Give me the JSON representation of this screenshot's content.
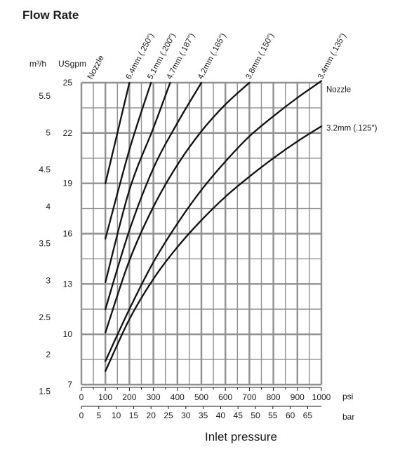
{
  "title": "Flow Rate",
  "axes": {
    "left_m3h_label": "m³/h",
    "left_usgpm_label": "USgpm",
    "nozzle_header": "Nozzle",
    "psi_unit": "psi",
    "bar_unit": "bar",
    "xlabel": "Inlet pressure"
  },
  "chart_data": {
    "type": "line",
    "title": "Flow Rate",
    "xlabel": "Inlet pressure",
    "ylabel": "USgpm",
    "x_unit": "psi",
    "xlim": [
      0,
      1000
    ],
    "ylim": [
      7,
      25
    ],
    "grid": true,
    "psi_ticks": [
      "0",
      "100",
      "200",
      "300",
      "400",
      "500",
      "600",
      "700",
      "800",
      "900",
      "1000"
    ],
    "bar_ticks": [
      "0",
      "5",
      "10",
      "15",
      "20",
      "25",
      "30",
      "35",
      "40",
      "45",
      "50",
      "55",
      "60",
      "65"
    ],
    "usgpm_ticks": [
      "25",
      "22",
      "19",
      "16",
      "13",
      "10",
      "7"
    ],
    "m3h_ticks": [
      "5.5",
      "5",
      "4.5",
      "4",
      "3.5",
      "3",
      "2.5",
      "2",
      "1.5"
    ],
    "series": [
      {
        "name": "6.4mm (.250\")",
        "x": [
          100,
          200
        ],
        "y": [
          19.0,
          25.0
        ]
      },
      {
        "name": "5.1mm (.200\")",
        "x": [
          100,
          200,
          290
        ],
        "y": [
          15.7,
          21.0,
          25.0
        ]
      },
      {
        "name": "4.7mm (.187\")",
        "x": [
          100,
          200,
          300,
          370
        ],
        "y": [
          13.1,
          18.6,
          22.3,
          25.0
        ]
      },
      {
        "name": "4.2mm (.165\")",
        "x": [
          100,
          200,
          300,
          400,
          500
        ],
        "y": [
          11.5,
          16.2,
          19.9,
          22.6,
          25.0
        ]
      },
      {
        "name": "3.8mm (.150\")",
        "x": [
          100,
          200,
          300,
          400,
          500,
          600,
          700
        ],
        "y": [
          10.1,
          14.4,
          17.6,
          20.1,
          22.1,
          23.7,
          25.0
        ]
      },
      {
        "name": "3.4mm (.135\")",
        "x": [
          100,
          200,
          300,
          400,
          500,
          600,
          700,
          800,
          900,
          1000
        ],
        "y": [
          8.4,
          11.5,
          14.3,
          16.6,
          18.6,
          20.3,
          21.8,
          23.0,
          24.1,
          25.1
        ]
      },
      {
        "name": "3.2mm (.125\")",
        "x": [
          100,
          200,
          300,
          400,
          500,
          600,
          700,
          800,
          900,
          1000
        ],
        "y": [
          7.8,
          10.9,
          13.3,
          15.2,
          16.8,
          18.2,
          19.4,
          20.5,
          21.5,
          22.4
        ]
      }
    ],
    "end_labels": [
      "Nozzle",
      "3.2mm (.125\")"
    ]
  }
}
